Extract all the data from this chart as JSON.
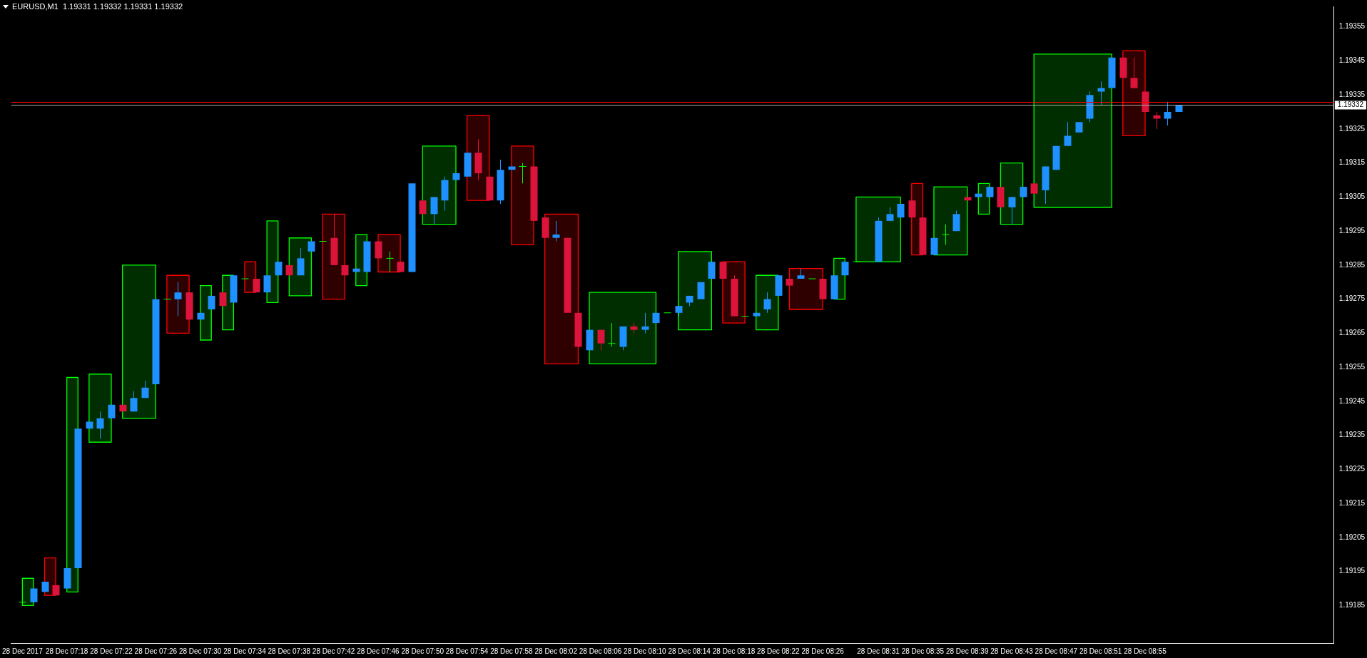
{
  "chart_data": {
    "type": "candlestick",
    "title": "EURUSD,M1  1.19331 1.19332 1.19331 1.19332",
    "x": [
      "2017-12-28T07:14",
      "2017-12-28T07:15",
      "2017-12-28T07:16",
      "2017-12-28T07:17",
      "2017-12-28T07:18",
      "2017-12-28T07:19",
      "2017-12-28T07:20",
      "2017-12-28T07:21",
      "2017-12-28T07:22",
      "2017-12-28T07:23",
      "2017-12-28T07:24",
      "2017-12-28T07:25",
      "2017-12-28T07:26",
      "2017-12-28T07:27",
      "2017-12-28T07:28",
      "2017-12-28T07:29",
      "2017-12-28T07:30",
      "2017-12-28T07:31",
      "2017-12-28T07:32",
      "2017-12-28T07:33",
      "2017-12-28T07:34",
      "2017-12-28T07:35",
      "2017-12-28T07:36",
      "2017-12-28T07:37",
      "2017-12-28T07:38",
      "2017-12-28T07:39",
      "2017-12-28T07:40",
      "2017-12-28T07:41",
      "2017-12-28T07:42",
      "2017-12-28T07:43",
      "2017-12-28T07:44",
      "2017-12-28T07:45",
      "2017-12-28T07:46",
      "2017-12-28T07:47",
      "2017-12-28T07:48",
      "2017-12-28T07:49",
      "2017-12-28T07:50",
      "2017-12-28T07:51",
      "2017-12-28T07:52",
      "2017-12-28T07:53",
      "2017-12-28T07:54",
      "2017-12-28T07:55",
      "2017-12-28T07:56",
      "2017-12-28T07:57",
      "2017-12-28T07:58",
      "2017-12-28T07:59",
      "2017-12-28T08:00",
      "2017-12-28T08:01",
      "2017-12-28T08:02",
      "2017-12-28T08:03",
      "2017-12-28T08:04",
      "2017-12-28T08:05",
      "2017-12-28T08:06",
      "2017-12-28T08:07",
      "2017-12-28T08:08",
      "2017-12-28T08:09",
      "2017-12-28T08:10",
      "2017-12-28T08:11",
      "2017-12-28T08:12",
      "2017-12-28T08:13",
      "2017-12-28T08:14",
      "2017-12-28T08:15",
      "2017-12-28T08:16",
      "2017-12-28T08:17",
      "2017-12-28T08:18",
      "2017-12-28T08:19",
      "2017-12-28T08:20",
      "2017-12-28T08:21",
      "2017-12-28T08:22",
      "2017-12-28T08:23",
      "2017-12-28T08:24",
      "2017-12-28T08:25",
      "2017-12-28T08:26",
      "2017-12-28T08:27",
      "2017-12-28T08:28",
      "2017-12-28T08:29",
      "2017-12-28T08:31",
      "2017-12-28T08:32",
      "2017-12-28T08:33",
      "2017-12-28T08:34",
      "2017-12-28T08:35",
      "2017-12-28T08:36",
      "2017-12-28T08:37",
      "2017-12-28T08:38",
      "2017-12-28T08:39",
      "2017-12-28T08:40",
      "2017-12-28T08:41",
      "2017-12-28T08:42",
      "2017-12-28T08:43",
      "2017-12-28T08:44",
      "2017-12-28T08:45",
      "2017-12-28T08:46",
      "2017-12-28T08:47",
      "2017-12-28T08:48",
      "2017-12-28T08:49",
      "2017-12-28T08:50",
      "2017-12-28T08:51",
      "2017-12-28T08:52",
      "2017-12-28T08:53",
      "2017-12-28T08:54",
      "2017-12-28T08:55",
      "2017-12-28T08:56",
      "2017-12-28T08:57",
      "2017-12-28T08:58"
    ],
    "ohlc": [
      [
        1.19186,
        1.19186,
        1.19186,
        1.19186
      ],
      [
        1.19186,
        1.1919,
        1.19186,
        1.1919
      ],
      [
        1.19189,
        1.19192,
        1.19189,
        1.19192
      ],
      [
        1.19191,
        1.19191,
        1.19188,
        1.19188
      ],
      [
        1.1919,
        1.19196,
        1.1919,
        1.19196
      ],
      [
        1.19196,
        1.19237,
        1.19196,
        1.19237
      ],
      [
        1.19237,
        1.19239,
        1.19237,
        1.19239
      ],
      [
        1.19237,
        1.19242,
        1.19234,
        1.1924
      ],
      [
        1.1924,
        1.19244,
        1.1924,
        1.19244
      ],
      [
        1.19244,
        1.19244,
        1.19242,
        1.19242
      ],
      [
        1.19242,
        1.19248,
        1.19242,
        1.19246
      ],
      [
        1.19246,
        1.19251,
        1.19246,
        1.19249
      ],
      [
        1.1925,
        1.19275,
        1.1925,
        1.19275
      ],
      [
        1.19275,
        1.19275,
        1.19275,
        1.19275
      ],
      [
        1.19275,
        1.1928,
        1.1927,
        1.19277
      ],
      [
        1.19277,
        1.19277,
        1.19269,
        1.19269
      ],
      [
        1.19269,
        1.19271,
        1.19269,
        1.19271
      ],
      [
        1.19272,
        1.19276,
        1.19272,
        1.19276
      ],
      [
        1.19277,
        1.19277,
        1.19273,
        1.19273
      ],
      [
        1.19274,
        1.19282,
        1.19274,
        1.19282
      ],
      [
        1.19281,
        1.19281,
        1.19281,
        1.19281
      ],
      [
        1.19281,
        1.19281,
        1.19277,
        1.19277
      ],
      [
        1.19277,
        1.19282,
        1.19277,
        1.19282
      ],
      [
        1.19282,
        1.19286,
        1.19282,
        1.19286
      ],
      [
        1.19285,
        1.19285,
        1.19282,
        1.19282
      ],
      [
        1.19282,
        1.1929,
        1.19282,
        1.19287
      ],
      [
        1.19289,
        1.19292,
        1.19289,
        1.19292
      ],
      [
        1.19292,
        1.19292,
        1.19292,
        1.19292
      ],
      [
        1.19293,
        1.193,
        1.19285,
        1.19285
      ],
      [
        1.19285,
        1.19285,
        1.19282,
        1.19282
      ],
      [
        1.19283,
        1.19284,
        1.19283,
        1.19284
      ],
      [
        1.19283,
        1.19292,
        1.19283,
        1.19292
      ],
      [
        1.19292,
        1.19292,
        1.19287,
        1.19287
      ],
      [
        1.19287,
        1.19289,
        1.19283,
        1.19287
      ],
      [
        1.19286,
        1.19286,
        1.19283,
        1.19283
      ],
      [
        1.19283,
        1.19309,
        1.19283,
        1.19309
      ],
      [
        1.19304,
        1.19304,
        1.193,
        1.193
      ],
      [
        1.193,
        1.19305,
        1.19297,
        1.19305
      ],
      [
        1.19304,
        1.19311,
        1.19301,
        1.1931
      ],
      [
        1.1931,
        1.19312,
        1.1931,
        1.19312
      ],
      [
        1.19311,
        1.19318,
        1.19311,
        1.19318
      ],
      [
        1.19318,
        1.19322,
        1.1931,
        1.19312
      ],
      [
        1.19311,
        1.19311,
        1.19304,
        1.19304
      ],
      [
        1.19304,
        1.19316,
        1.19303,
        1.19313
      ],
      [
        1.19313,
        1.19314,
        1.19313,
        1.19314
      ],
      [
        1.19314,
        1.19315,
        1.19309,
        1.19314
      ],
      [
        1.19314,
        1.19314,
        1.19298,
        1.19298
      ],
      [
        1.19299,
        1.19299,
        1.19293,
        1.19293
      ],
      [
        1.19293,
        1.19298,
        1.19292,
        1.19294
      ],
      [
        1.19293,
        1.19293,
        1.19271,
        1.19271
      ],
      [
        1.19271,
        1.19271,
        1.19261,
        1.19261
      ],
      [
        1.1926,
        1.19266,
        1.1926,
        1.19266
      ],
      [
        1.19266,
        1.19266,
        1.1926,
        1.19262
      ],
      [
        1.19262,
        1.19268,
        1.19261,
        1.19262
      ],
      [
        1.19261,
        1.19267,
        1.1926,
        1.19267
      ],
      [
        1.19267,
        1.19268,
        1.19265,
        1.19266
      ],
      [
        1.19266,
        1.19271,
        1.19265,
        1.19267
      ],
      [
        1.19268,
        1.19271,
        1.19268,
        1.19271
      ],
      [
        1.19271,
        1.19271,
        1.19271,
        1.19271
      ],
      [
        1.19271,
        1.19273,
        1.1927,
        1.19273
      ],
      [
        1.19274,
        1.19276,
        1.19273,
        1.19276
      ],
      [
        1.19275,
        1.1928,
        1.19275,
        1.1928
      ],
      [
        1.19281,
        1.19286,
        1.19281,
        1.19286
      ],
      [
        1.19286,
        1.19286,
        1.19281,
        1.19281
      ],
      [
        1.19281,
        1.19282,
        1.1927,
        1.1927
      ],
      [
        1.1927,
        1.1927,
        1.1927,
        1.1927
      ],
      [
        1.1927,
        1.19271,
        1.1927,
        1.19271
      ],
      [
        1.19272,
        1.19277,
        1.19271,
        1.19275
      ],
      [
        1.19276,
        1.19282,
        1.19276,
        1.19282
      ],
      [
        1.19281,
        1.19281,
        1.19279,
        1.19279
      ],
      [
        1.19281,
        1.19284,
        1.19281,
        1.19282
      ],
      [
        1.19281,
        1.19281,
        1.19281,
        1.19281
      ],
      [
        1.19281,
        1.19281,
        1.19275,
        1.19275
      ],
      [
        1.19275,
        1.19282,
        1.19275,
        1.19282
      ],
      [
        1.19282,
        1.19286,
        1.19282,
        1.19286
      ],
      [
        1.19286,
        1.19286,
        1.19286,
        1.19286
      ],
      [
        1.19286,
        1.19299,
        1.19286,
        1.19298
      ],
      [
        1.19298,
        1.19302,
        1.19298,
        1.193
      ],
      [
        1.19299,
        1.19303,
        1.19299,
        1.19303
      ],
      [
        1.19304,
        1.19304,
        1.19299,
        1.19299
      ],
      [
        1.19299,
        1.19299,
        1.19288,
        1.19288
      ],
      [
        1.19288,
        1.19293,
        1.19288,
        1.19293
      ],
      [
        1.19294,
        1.19297,
        1.19291,
        1.19294
      ],
      [
        1.19295,
        1.19301,
        1.19295,
        1.193
      ],
      [
        1.19305,
        1.19305,
        1.19304,
        1.19304
      ],
      [
        1.19305,
        1.19306,
        1.19305,
        1.19306
      ],
      [
        1.19305,
        1.19308,
        1.19305,
        1.19308
      ],
      [
        1.19308,
        1.19308,
        1.19302,
        1.19302
      ],
      [
        1.19302,
        1.19305,
        1.19297,
        1.19305
      ],
      [
        1.19305,
        1.19308,
        1.19305,
        1.19308
      ],
      [
        1.19309,
        1.19309,
        1.19306,
        1.19306
      ],
      [
        1.19307,
        1.19314,
        1.19303,
        1.19314
      ],
      [
        1.19313,
        1.1932,
        1.19313,
        1.1932
      ],
      [
        1.1932,
        1.19327,
        1.1932,
        1.19323
      ],
      [
        1.19324,
        1.19327,
        1.19324,
        1.19327
      ],
      [
        1.19328,
        1.19336,
        1.19327,
        1.19335
      ],
      [
        1.19336,
        1.19339,
        1.19332,
        1.19337
      ],
      [
        1.19337,
        1.19346,
        1.19337,
        1.19346
      ],
      [
        1.19346,
        1.19346,
        1.1934,
        1.1934
      ],
      [
        1.1934,
        1.19346,
        1.19337,
        1.19337
      ],
      [
        1.19336,
        1.19336,
        1.1933,
        1.1933
      ],
      [
        1.19329,
        1.1933,
        1.19325,
        1.19328
      ],
      [
        1.19328,
        1.19333,
        1.19326,
        1.1933
      ],
      [
        1.1933,
        1.19332,
        1.1933,
        1.19332
      ]
    ],
    "colors": [
      "#00ff00",
      "#1e90ff",
      "#1e90ff",
      "#dc143c",
      "#1e90ff",
      "#1e90ff",
      "#1e90ff",
      "#1e90ff",
      "#1e90ff",
      "#dc143c",
      "#1e90ff",
      "#1e90ff",
      "#1e90ff",
      "#00ff00",
      "#1e90ff",
      "#dc143c",
      "#1e90ff",
      "#1e90ff",
      "#dc143c",
      "#1e90ff",
      "#00ff00",
      "#dc143c",
      "#1e90ff",
      "#1e90ff",
      "#dc143c",
      "#1e90ff",
      "#1e90ff",
      "#00ff00",
      "#dc143c",
      "#dc143c",
      "#1e90ff",
      "#1e90ff",
      "#dc143c",
      "#00ff00",
      "#dc143c",
      "#1e90ff",
      "#dc143c",
      "#1e90ff",
      "#1e90ff",
      "#1e90ff",
      "#1e90ff",
      "#dc143c",
      "#dc143c",
      "#1e90ff",
      "#1e90ff",
      "#00ff00",
      "#dc143c",
      "#dc143c",
      "#1e90ff",
      "#dc143c",
      "#dc143c",
      "#1e90ff",
      "#dc143c",
      "#00ff00",
      "#1e90ff",
      "#dc143c",
      "#1e90ff",
      "#1e90ff",
      "#00ff00",
      "#1e90ff",
      "#1e90ff",
      "#1e90ff",
      "#1e90ff",
      "#dc143c",
      "#dc143c",
      "#00ff00",
      "#1e90ff",
      "#1e90ff",
      "#1e90ff",
      "#dc143c",
      "#1e90ff",
      "#00ff00",
      "#dc143c",
      "#1e90ff",
      "#1e90ff",
      "#00ff00",
      "#1e90ff",
      "#1e90ff",
      "#1e90ff",
      "#dc143c",
      "#dc143c",
      "#1e90ff",
      "#00ff00",
      "#1e90ff",
      "#dc143c",
      "#1e90ff",
      "#1e90ff",
      "#dc143c",
      "#1e90ff",
      "#1e90ff",
      "#dc143c",
      "#1e90ff",
      "#1e90ff",
      "#1e90ff",
      "#1e90ff",
      "#1e90ff",
      "#1e90ff",
      "#1e90ff",
      "#dc143c",
      "#dc143c",
      "#dc143c",
      "#dc143c",
      "#1e90ff",
      "#1e90ff"
    ],
    "series": [
      {
        "type": "line",
        "color": "#00ff00",
        "x": [
          "2017-12-28T07:14",
          "2017-12-28T07:15"
        ],
        "values": [
          null,
          null
        ],
        "lower": [
          1.19185,
          1.19185
        ],
        "upper": [
          1.19193,
          1.19193
        ]
      },
      {
        "type": "line",
        "color": "#ff0000",
        "x": [
          "2017-12-28T07:16",
          "2017-12-28T07:17"
        ],
        "values": [
          null,
          null
        ],
        "lower": [
          1.19188,
          1.19188
        ],
        "upper": [
          1.19199,
          1.19199
        ]
      },
      {
        "type": "line",
        "color": "#00ff00",
        "x": [
          "2017-12-28T07:18",
          "2017-12-28T07:19"
        ],
        "values": [
          null,
          null
        ],
        "lower": [
          1.19189,
          1.19189
        ],
        "upper": [
          1.19252,
          1.19252
        ]
      },
      {
        "type": "line",
        "color": "#00ff00",
        "x": [
          "2017-12-28T07:20",
          "2017-12-28T07:22"
        ],
        "values": [
          null,
          null
        ],
        "lower": [
          1.19233,
          1.19233
        ],
        "upper": [
          1.19253,
          1.19253
        ]
      },
      {
        "type": "line",
        "color": "#00ff00",
        "x": [
          "2017-12-28T07:23",
          "2017-12-28T07:26"
        ],
        "values": [
          null,
          null
        ],
        "lower": [
          1.1924,
          1.1924
        ],
        "upper": [
          1.19285,
          1.19285
        ]
      },
      {
        "type": "line",
        "color": "#ff0000",
        "x": [
          "2017-12-28T07:27",
          "2017-12-28T07:29"
        ],
        "values": [
          null,
          null
        ],
        "lower": [
          1.19265,
          1.19265
        ],
        "upper": [
          1.19282,
          1.19282
        ]
      },
      {
        "type": "line",
        "color": "#00ff00",
        "x": [
          "2017-12-28T07:30",
          "2017-12-28T07:31"
        ],
        "values": [
          null,
          null
        ],
        "lower": [
          1.19263,
          1.19263
        ],
        "upper": [
          1.19279,
          1.19279
        ]
      },
      {
        "type": "line",
        "color": "#00ff00",
        "x": [
          "2017-12-28T07:32",
          "2017-12-28T07:33"
        ],
        "values": [
          null,
          null
        ],
        "lower": [
          1.19266,
          1.19266
        ],
        "upper": [
          1.19282,
          1.19282
        ]
      },
      {
        "type": "line",
        "color": "#ff0000",
        "x": [
          "2017-12-28T07:34",
          "2017-12-28T07:35"
        ],
        "values": [
          null,
          null
        ],
        "lower": [
          1.19277,
          1.19277
        ],
        "upper": [
          1.19286,
          1.19286
        ]
      },
      {
        "type": "line",
        "color": "#00ff00",
        "x": [
          "2017-12-28T07:36",
          "2017-12-28T07:37"
        ],
        "values": [
          null,
          null
        ],
        "lower": [
          1.19274,
          1.19274
        ],
        "upper": [
          1.19298,
          1.19298
        ]
      },
      {
        "type": "line",
        "color": "#00ff00",
        "x": [
          "2017-12-28T07:38",
          "2017-12-28T07:40"
        ],
        "values": [
          null,
          null
        ],
        "lower": [
          1.19276,
          1.19276
        ],
        "upper": [
          1.19293,
          1.19293
        ]
      },
      {
        "type": "line",
        "color": "#ff0000",
        "x": [
          "2017-12-28T07:41",
          "2017-12-28T07:43"
        ],
        "values": [
          null,
          null
        ],
        "lower": [
          1.19275,
          1.19275
        ],
        "upper": [
          1.193,
          1.193
        ]
      },
      {
        "type": "line",
        "color": "#00ff00",
        "x": [
          "2017-12-28T07:44",
          "2017-12-28T07:45"
        ],
        "values": [
          null,
          null
        ],
        "lower": [
          1.19279,
          1.19279
        ],
        "upper": [
          1.19294,
          1.19294
        ]
      },
      {
        "type": "line",
        "color": "#ff0000",
        "x": [
          "2017-12-28T07:46",
          "2017-12-28T07:48"
        ],
        "values": [
          null,
          null
        ],
        "lower": [
          1.19283,
          1.19283
        ],
        "upper": [
          1.19294,
          1.19294
        ]
      },
      {
        "type": "line",
        "color": "#00ff00",
        "x": [
          "2017-12-28T07:50",
          "2017-12-28T07:53"
        ],
        "values": [
          null,
          null
        ],
        "lower": [
          1.19297,
          1.19297
        ],
        "upper": [
          1.1932,
          1.1932
        ]
      },
      {
        "type": "line",
        "color": "#ff0000",
        "x": [
          "2017-12-28T07:54",
          "2017-12-28T07:56"
        ],
        "values": [
          null,
          null
        ],
        "lower": [
          1.19304,
          1.19304
        ],
        "upper": [
          1.19329,
          1.19329
        ]
      },
      {
        "type": "line",
        "color": "#ff0000",
        "x": [
          "2017-12-28T07:58",
          "2017-12-28T08:00"
        ],
        "values": [
          null,
          null
        ],
        "lower": [
          1.19291,
          1.19291
        ],
        "upper": [
          1.1932,
          1.1932
        ]
      },
      {
        "type": "line",
        "color": "#ff0000",
        "x": [
          "2017-12-28T08:01",
          "2017-12-28T08:04"
        ],
        "values": [
          null,
          null
        ],
        "lower": [
          1.19256,
          1.19256
        ],
        "upper": [
          1.193,
          1.193
        ]
      },
      {
        "type": "line",
        "color": "#00ff00",
        "x": [
          "2017-12-28T08:05",
          "2017-12-28T08:11"
        ],
        "values": [
          null,
          null
        ],
        "lower": [
          1.19256,
          1.19256
        ],
        "upper": [
          1.19277,
          1.19277
        ]
      },
      {
        "type": "line",
        "color": "#00ff00",
        "x": [
          "2017-12-28T08:13",
          "2017-12-28T08:16"
        ],
        "values": [
          null,
          null
        ],
        "lower": [
          1.19266,
          1.19266
        ],
        "upper": [
          1.19289,
          1.19289
        ]
      },
      {
        "type": "line",
        "color": "#ff0000",
        "x": [
          "2017-12-28T08:17",
          "2017-12-28T08:19"
        ],
        "values": [
          null,
          null
        ],
        "lower": [
          1.19268,
          1.19268
        ],
        "upper": [
          1.19286,
          1.19286
        ]
      },
      {
        "type": "line",
        "color": "#00ff00",
        "x": [
          "2017-12-28T08:20",
          "2017-12-28T08:22"
        ],
        "values": [
          null,
          null
        ],
        "lower": [
          1.19266,
          1.19266
        ],
        "upper": [
          1.19282,
          1.19282
        ]
      },
      {
        "type": "line",
        "color": "#ff0000",
        "x": [
          "2017-12-28T08:23",
          "2017-12-28T08:26"
        ],
        "values": [
          null,
          null
        ],
        "lower": [
          1.19272,
          1.19272
        ],
        "upper": [
          1.19284,
          1.19284
        ]
      },
      {
        "type": "line",
        "color": "#00ff00",
        "x": [
          "2017-12-28T08:27",
          "2017-12-28T08:28"
        ],
        "values": [
          null,
          null
        ],
        "lower": [
          1.19275,
          1.19275
        ],
        "upper": [
          1.19287,
          1.19287
        ]
      },
      {
        "type": "line",
        "color": "#00ff00",
        "x": [
          "2017-12-28T08:29",
          "2017-12-28T08:33"
        ],
        "values": [
          null,
          null
        ],
        "lower": [
          1.19286,
          1.19286
        ],
        "upper": [
          1.19305,
          1.19305
        ]
      },
      {
        "type": "line",
        "color": "#ff0000",
        "x": [
          "2017-12-28T08:34",
          "2017-12-28T08:35"
        ],
        "values": [
          null,
          null
        ],
        "lower": [
          1.19288,
          1.19288
        ],
        "upper": [
          1.19309,
          1.19309
        ]
      },
      {
        "type": "line",
        "color": "#00ff00",
        "x": [
          "2017-12-28T08:36",
          "2017-12-28T08:39"
        ],
        "values": [
          null,
          null
        ],
        "lower": [
          1.19288,
          1.19288
        ],
        "upper": [
          1.19308,
          1.19308
        ]
      },
      {
        "type": "line",
        "color": "#00ff00",
        "x": [
          "2017-12-28T08:40",
          "2017-12-28T08:41"
        ],
        "values": [
          null,
          null
        ],
        "lower": [
          1.193,
          1.193
        ],
        "upper": [
          1.19309,
          1.19309
        ]
      },
      {
        "type": "line",
        "color": "#00ff00",
        "x": [
          "2017-12-28T08:42",
          "2017-12-28T08:44"
        ],
        "values": [
          null,
          null
        ],
        "lower": [
          1.19297,
          1.19297
        ],
        "upper": [
          1.19315,
          1.19315
        ]
      },
      {
        "type": "line",
        "color": "#00ff00",
        "x": [
          "2017-12-28T08:45",
          "2017-12-28T08:52"
        ],
        "values": [
          null,
          null
        ],
        "lower": [
          1.19302,
          1.19302
        ],
        "upper": [
          1.19347,
          1.19347
        ]
      },
      {
        "type": "line",
        "color": "#ff0000",
        "x": [
          "2017-12-28T08:53",
          "2017-12-28T08:55"
        ],
        "values": [
          null,
          null
        ],
        "lower": [
          1.19323,
          1.19323
        ],
        "upper": [
          1.19348,
          1.19348
        ]
      }
    ],
    "xlim": [
      "2017-12-28T07:13",
      "2017-12-28T09:12"
    ],
    "xticks": [
      {
        "value": "2017-12-28T07:14",
        "label": "28 Dec 2017"
      },
      {
        "value": "2017-12-28T07:18",
        "label": "28 Dec 07:18"
      },
      {
        "value": "2017-12-28T07:22",
        "label": "28 Dec 07:22"
      },
      {
        "value": "2017-12-28T07:26",
        "label": "28 Dec 07:26"
      },
      {
        "value": "2017-12-28T07:30",
        "label": "28 Dec 07:30"
      },
      {
        "value": "2017-12-28T07:34",
        "label": "28 Dec 07:34"
      },
      {
        "value": "2017-12-28T07:38",
        "label": "28 Dec 07:38"
      },
      {
        "value": "2017-12-28T07:42",
        "label": "28 Dec 07:42"
      },
      {
        "value": "2017-12-28T07:46",
        "label": "28 Dec 07:46"
      },
      {
        "value": "2017-12-28T07:50",
        "label": "28 Dec 07:50"
      },
      {
        "value": "2017-12-28T07:54",
        "label": "28 Dec 07:54"
      },
      {
        "value": "2017-12-28T07:58",
        "label": "28 Dec 07:58"
      },
      {
        "value": "2017-12-28T08:02",
        "label": "28 Dec 08:02"
      },
      {
        "value": "2017-12-28T08:06",
        "label": "28 Dec 08:06"
      },
      {
        "value": "2017-12-28T08:10",
        "label": "28 Dec 08:10"
      },
      {
        "value": "2017-12-28T08:14",
        "label": "28 Dec 08:14"
      },
      {
        "value": "2017-12-28T08:18",
        "label": "28 Dec 08:18"
      },
      {
        "value": "2017-12-28T08:22",
        "label": "28 Dec 08:22"
      },
      {
        "value": "2017-12-28T08:26",
        "label": "28 Dec 08:26"
      },
      {
        "value": "2017-12-28T08:31",
        "label": "28 Dec 08:31"
      },
      {
        "value": "2017-12-28T08:35",
        "label": "28 Dec 08:35"
      },
      {
        "value": "2017-12-28T08:39",
        "label": "28 Dec 08:39"
      },
      {
        "value": "2017-12-28T08:43",
        "label": "28 Dec 08:43"
      },
      {
        "value": "2017-12-28T08:47",
        "label": "28 Dec 08:47"
      },
      {
        "value": "2017-12-28T08:51",
        "label": "28 Dec 08:51"
      },
      {
        "value": "2017-12-28T08:55",
        "label": "28 Dec 08:55"
      }
    ],
    "ylim": [
      1.19174,
      1.19361
    ],
    "yticks": [
      1.19185,
      1.19195,
      1.19205,
      1.19215,
      1.19225,
      1.19235,
      1.19245,
      1.19255,
      1.19265,
      1.19275,
      1.19285,
      1.19295,
      1.19305,
      1.19315,
      1.19325,
      1.19335,
      1.19345,
      1.19355
    ],
    "ref_lines": [
      {
        "axis": "y",
        "value": 1.19333,
        "label": null,
        "color": "#ff0000"
      },
      {
        "axis": "y",
        "value": 1.19332,
        "label": "1.19332",
        "color": "#a9a9a9"
      }
    ],
    "legend": false
  }
}
